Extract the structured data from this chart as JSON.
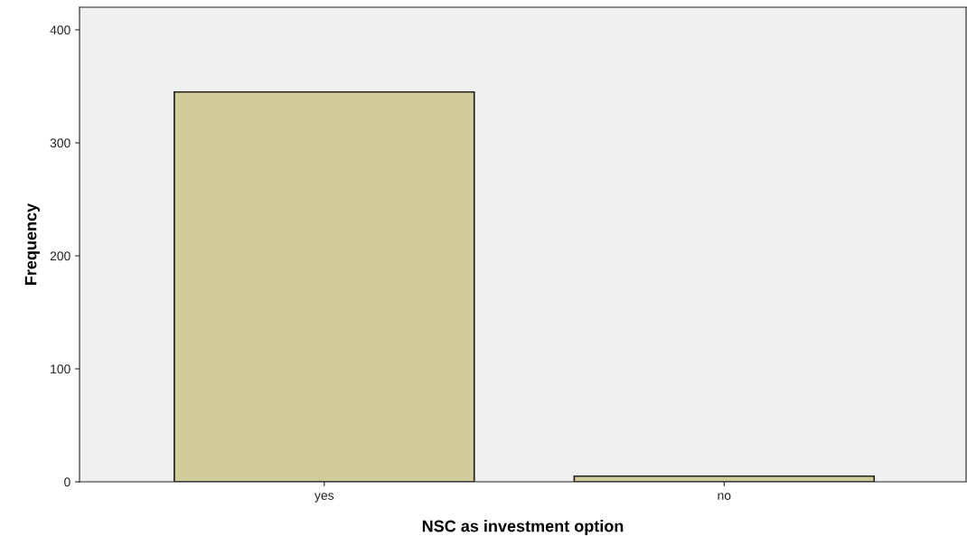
{
  "chart_data": {
    "type": "bar",
    "xlabel": "NSC as investment option",
    "ylabel": "Frequency",
    "categories": [
      "yes",
      "no"
    ],
    "values": [
      345,
      5
    ],
    "color": "#d2cd98",
    "ylim": [
      0,
      420
    ],
    "yticks": [
      0,
      100,
      200,
      300,
      400
    ],
    "grid": false
  }
}
